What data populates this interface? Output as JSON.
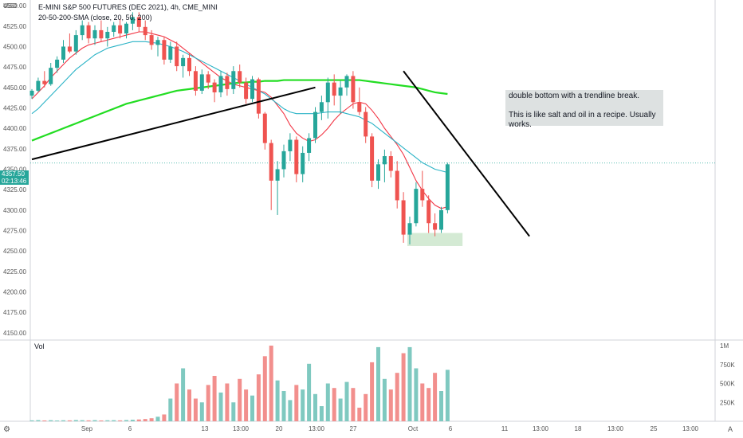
{
  "header": {
    "currency": "USD",
    "title": "E-MINI S&P 500 FUTURES (DEC 2021), 4h, CME_MINI",
    "indicator": "20-50-200-SMA (close, 20, 50, 200)"
  },
  "price_tag": {
    "price": "4357.50",
    "countdown": "02:13:46"
  },
  "note": {
    "line1": "double bottom with a trendline break.",
    "line2": "This is like salt and oil in a recipe. Usually works."
  },
  "volume_pane": {
    "label": "Vol"
  },
  "footer": {
    "settings_icon": "gear-icon",
    "auto_label": "A"
  },
  "colors": {
    "up": "#26a69a",
    "down": "#ef5350",
    "sma20": "#f23645",
    "sma50": "#2ab3c6",
    "sma200": "#22dd22",
    "trendline": "#000000",
    "highlight": "#cfe8cf"
  },
  "chart_data": {
    "type": "candlestick",
    "title": "E-MINI S&P 500 FUTURES (DEC 2021), 4h, CME_MINI",
    "price_axis": {
      "ticks": [
        "4550.00",
        "4525.00",
        "4500.00",
        "4475.00",
        "4450.00",
        "4425.00",
        "4400.00",
        "4375.00",
        "4350.00",
        "4325.00",
        "4300.00",
        "4275.00",
        "4250.00",
        "4225.00",
        "4200.00",
        "4175.00",
        "4150.00"
      ],
      "ylim": [
        4143,
        4555
      ]
    },
    "volume_axis": {
      "ticks": [
        "1M",
        "750K",
        "500K",
        "250K"
      ],
      "ylim": [
        0,
        1000000
      ]
    },
    "time_axis": {
      "ticks": [
        "Sep",
        "6",
        "13",
        "13:00",
        "20",
        "13:00",
        "27",
        "Oct",
        "6",
        "11",
        "13:00",
        "18",
        "13:00",
        "25",
        "13:00"
      ]
    },
    "current_price": 4357.5,
    "candles": [
      [
        4440,
        4448,
        4436,
        4446
      ],
      [
        4446,
        4462,
        4444,
        4458
      ],
      [
        4458,
        4470,
        4450,
        4454
      ],
      [
        4454,
        4480,
        4452,
        4474
      ],
      [
        4474,
        4488,
        4468,
        4484
      ],
      [
        4484,
        4508,
        4480,
        4500
      ],
      [
        4500,
        4516,
        4492,
        4494
      ],
      [
        4494,
        4520,
        4490,
        4514
      ],
      [
        4514,
        4532,
        4508,
        4526
      ],
      [
        4526,
        4530,
        4504,
        4510
      ],
      [
        4510,
        4526,
        4502,
        4520
      ],
      [
        4520,
        4532,
        4506,
        4510
      ],
      [
        4510,
        4524,
        4500,
        4518
      ],
      [
        4518,
        4530,
        4512,
        4526
      ],
      [
        4526,
        4534,
        4510,
        4516
      ],
      [
        4516,
        4530,
        4510,
        4528
      ],
      [
        4528,
        4542,
        4520,
        4536
      ],
      [
        4536,
        4542,
        4518,
        4524
      ],
      [
        4524,
        4532,
        4508,
        4514
      ],
      [
        4514,
        4520,
        4496,
        4502
      ],
      [
        4502,
        4512,
        4488,
        4508
      ],
      [
        4508,
        4512,
        4478,
        4484
      ],
      [
        4484,
        4506,
        4480,
        4500
      ],
      [
        4500,
        4506,
        4470,
        4476
      ],
      [
        4476,
        4490,
        4462,
        4486
      ],
      [
        4486,
        4492,
        4464,
        4470
      ],
      [
        4470,
        4476,
        4440,
        4446
      ],
      [
        4446,
        4472,
        4442,
        4466
      ],
      [
        4466,
        4470,
        4448,
        4456
      ],
      [
        4456,
        4460,
        4432,
        4444
      ],
      [
        4444,
        4470,
        4438,
        4464
      ],
      [
        4464,
        4468,
        4440,
        4448
      ],
      [
        4448,
        4476,
        4442,
        4470
      ],
      [
        4470,
        4478,
        4450,
        4456
      ],
      [
        4456,
        4462,
        4430,
        4436
      ],
      [
        4436,
        4464,
        4432,
        4460
      ],
      [
        4460,
        4462,
        4412,
        4418
      ],
      [
        4418,
        4420,
        4374,
        4382
      ],
      [
        4382,
        4386,
        4300,
        4336
      ],
      [
        4336,
        4360,
        4294,
        4350
      ],
      [
        4350,
        4380,
        4340,
        4372
      ],
      [
        4372,
        4394,
        4360,
        4386
      ],
      [
        4386,
        4390,
        4334,
        4344
      ],
      [
        4344,
        4378,
        4334,
        4370
      ],
      [
        4370,
        4394,
        4360,
        4388
      ],
      [
        4388,
        4426,
        4382,
        4420
      ],
      [
        4420,
        4440,
        4410,
        4432
      ],
      [
        4432,
        4462,
        4412,
        4456
      ],
      [
        4456,
        4466,
        4428,
        4440
      ],
      [
        4440,
        4458,
        4418,
        4450
      ],
      [
        4450,
        4466,
        4440,
        4464
      ],
      [
        4464,
        4470,
        4424,
        4432
      ],
      [
        4432,
        4450,
        4416,
        4420
      ],
      [
        4420,
        4426,
        4382,
        4390
      ],
      [
        4390,
        4394,
        4328,
        4336
      ],
      [
        4336,
        4362,
        4326,
        4356
      ],
      [
        4356,
        4374,
        4334,
        4366
      ],
      [
        4366,
        4372,
        4340,
        4348
      ],
      [
        4348,
        4360,
        4302,
        4312
      ],
      [
        4312,
        4322,
        4260,
        4270
      ],
      [
        4270,
        4292,
        4258,
        4284
      ],
      [
        4284,
        4334,
        4280,
        4326
      ],
      [
        4326,
        4348,
        4304,
        4312
      ],
      [
        4312,
        4318,
        4272,
        4284
      ],
      [
        4284,
        4296,
        4268,
        4276
      ],
      [
        4276,
        4304,
        4272,
        4300
      ],
      [
        4300,
        4358,
        4296,
        4356
      ]
    ],
    "volume": [
      12000,
      15000,
      11000,
      14000,
      10000,
      13000,
      12000,
      16000,
      14000,
      12000,
      15000,
      11000,
      13000,
      14000,
      12000,
      16000,
      20000,
      24000,
      30000,
      40000,
      60000,
      90000,
      300000,
      500000,
      700000,
      420000,
      300000,
      250000,
      480000,
      600000,
      380000,
      500000,
      250000,
      560000,
      420000,
      340000,
      620000,
      860000,
      1000000,
      540000,
      400000,
      280000,
      480000,
      420000,
      760000,
      360000,
      200000,
      500000,
      440000,
      300000,
      520000,
      440000,
      180000,
      360000,
      780000,
      980000,
      560000,
      420000,
      640000,
      900000,
      980000,
      700000,
      500000,
      440000,
      640000,
      400000,
      680000
    ],
    "indicators": [
      {
        "name": "SMA 20",
        "color": "#f23645",
        "values": [
          4436,
          4444,
          4452,
          4462,
          4470,
          4478,
          4486,
          4492,
          4498,
          4502,
          4504,
          4506,
          4508,
          4510,
          4512,
          4514,
          4516,
          4518,
          4518,
          4516,
          4514,
          4512,
          4508,
          4504,
          4498,
          4492,
          4486,
          4480,
          4474,
          4468,
          4462,
          4458,
          4454,
          4452,
          4450,
          4448,
          4446,
          4444,
          4438,
          4428,
          4418,
          4404,
          4394,
          4388,
          4384,
          4386,
          4392,
          4400,
          4410,
          4418,
          4424,
          4430,
          4432,
          4430,
          4422,
          4412,
          4400,
          4390,
          4380,
          4368,
          4352,
          4336,
          4324,
          4314,
          4306,
          4302,
          4304
        ]
      },
      {
        "name": "SMA 50",
        "color": "#2ab3c6",
        "values": [
          4418,
          4424,
          4432,
          4440,
          4448,
          4456,
          4464,
          4472,
          4478,
          4484,
          4490,
          4494,
          4498,
          4500,
          4502,
          4504,
          4506,
          4506,
          4506,
          4505,
          4504,
          4502,
          4500,
          4497,
          4494,
          4490,
          4486,
          4482,
          4478,
          4474,
          4470,
          4466,
          4462,
          4458,
          4454,
          4450,
          4446,
          4442,
          4436,
          4430,
          4424,
          4420,
          4418,
          4418,
          4418,
          4418,
          4419,
          4420,
          4420,
          4420,
          4418,
          4416,
          4414,
          4410,
          4406,
          4400,
          4394,
          4388,
          4382,
          4376,
          4370,
          4364,
          4358,
          4354,
          4350,
          4348,
          4346
        ]
      },
      {
        "name": "SMA 200",
        "color": "#22dd22",
        "values": [
          4385,
          4388,
          4391,
          4394,
          4397,
          4400,
          4403,
          4406,
          4409,
          4412,
          4415,
          4418,
          4421,
          4424,
          4427,
          4430,
          4432,
          4434,
          4436,
          4438,
          4440,
          4442,
          4444,
          4446,
          4447,
          4448,
          4449,
          4450,
          4451,
          4452,
          4453,
          4454,
          4455,
          4456,
          4456,
          4457,
          4457,
          4458,
          4458,
          4458,
          4459,
          4459,
          4459,
          4459,
          4459,
          4459,
          4459,
          4459,
          4459,
          4459,
          4459,
          4459,
          4459,
          4458,
          4457,
          4456,
          4455,
          4454,
          4453,
          4452,
          4451,
          4450,
          4448,
          4446,
          4444,
          4443,
          4442
        ]
      }
    ],
    "trendlines": [
      {
        "from": [
          0,
          4362
        ],
        "to": [
          45,
          4450
        ]
      },
      {
        "from": [
          59,
          4470
        ],
        "to": [
          79,
          4268
        ]
      }
    ],
    "highlight": {
      "from": 60,
      "to": 68,
      "low": 4256,
      "high": 4272
    }
  }
}
